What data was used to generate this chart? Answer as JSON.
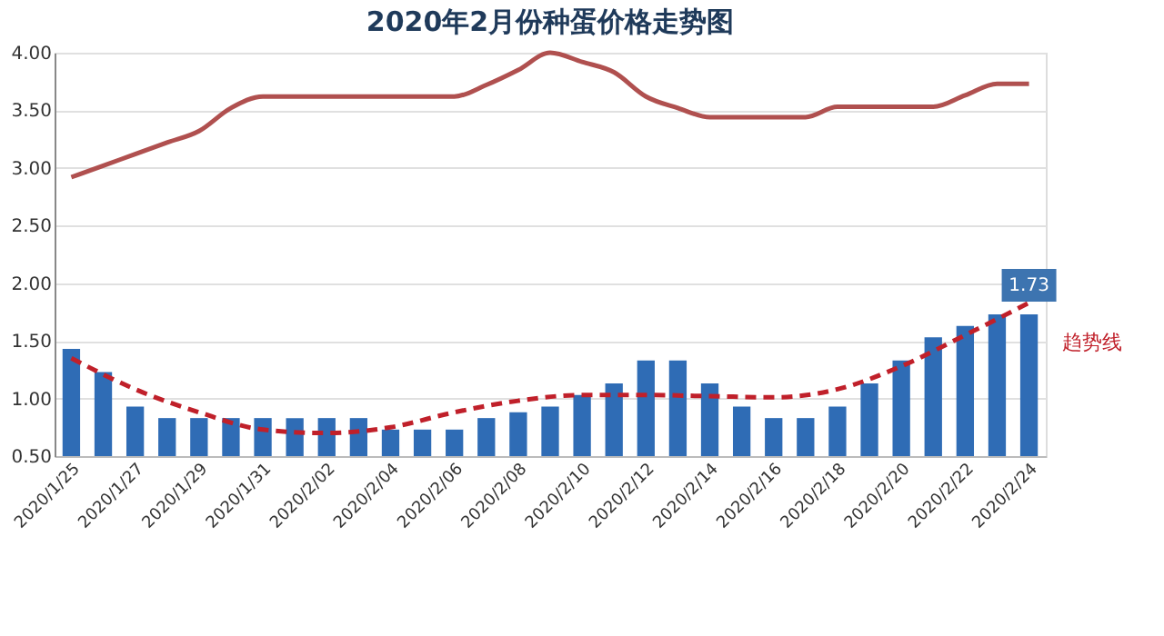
{
  "chart_data": {
    "type": "bar",
    "title": "2020年2月份种蛋价格走势图",
    "categories": [
      "2020/1/25",
      null,
      "2020/1/27",
      null,
      "2020/1/29",
      null,
      "2020/1/31",
      null,
      "2020/2/02",
      null,
      "2020/2/04",
      null,
      "2020/2/06",
      null,
      "2020/2/08",
      null,
      "2020/2/10",
      null,
      "2020/2/12",
      null,
      "2020/2/14",
      null,
      "2020/2/16",
      null,
      "2020/2/18",
      null,
      "2020/2/20",
      null,
      "2020/2/22",
      null,
      "2020/2/24"
    ],
    "series": [
      {
        "color": "#2f6cb5",
        "values": [
          1.43,
          1.23,
          0.93,
          0.83,
          0.83,
          0.83,
          0.83,
          0.83,
          0.83,
          0.83,
          0.73,
          0.73,
          0.73,
          0.83,
          0.88,
          0.93,
          1.03,
          1.13,
          1.33,
          1.33,
          1.13,
          0.93,
          0.83,
          0.83,
          0.93,
          1.13,
          1.33,
          1.53,
          1.63,
          1.73,
          1.73
        ],
        "value_labels": [
          null,
          null,
          null,
          null,
          null,
          null,
          null,
          null,
          null,
          null,
          null,
          null,
          null,
          null,
          null,
          null,
          null,
          null,
          null,
          null,
          null,
          null,
          null,
          null,
          null,
          null,
          null,
          null,
          null,
          null,
          "1.73"
        ]
      },
      {
        "type": "line",
        "color": "#b0504f",
        "line_style": "solid",
        "values": [
          2.92,
          3.02,
          3.12,
          3.22,
          3.32,
          3.52,
          3.62,
          3.62,
          3.62,
          3.62,
          3.62,
          3.62,
          3.62,
          3.72,
          3.85,
          4.0,
          3.92,
          3.83,
          3.62,
          3.52,
          3.44,
          3.44,
          3.44,
          3.44,
          3.53,
          3.53,
          3.53,
          3.53,
          3.63,
          3.73,
          3.73
        ]
      },
      {
        "type": "line",
        "name": "趋势线",
        "color": "#c0202a",
        "line_style": "dashed",
        "x": [
          "2020/1/25",
          "2020/1/27",
          "2020/1/29",
          "2020/1/31",
          "2020/2/02",
          "2020/2/04",
          "2020/2/06",
          "2020/2/08",
          "2020/2/10",
          "2020/2/12",
          "2020/2/14",
          "2020/2/16",
          "2020/2/18",
          "2020/2/20",
          "2020/2/22",
          "2020/2/24"
        ],
        "values": [
          1.35,
          1.08,
          0.88,
          0.73,
          0.7,
          0.75,
          0.88,
          0.98,
          1.03,
          1.03,
          1.02,
          1.01,
          1.08,
          1.28,
          1.55,
          1.83
        ]
      }
    ],
    "ylim": [
      0.5,
      4.0
    ],
    "yticks": [
      {
        "value": 0.5,
        "label": "0.50"
      },
      {
        "value": 1.0,
        "label": "1.00"
      },
      {
        "value": 1.5,
        "label": "1.50"
      },
      {
        "value": 2.0,
        "label": "2.00"
      },
      {
        "value": 2.5,
        "label": "2.50"
      },
      {
        "value": 3.0,
        "label": "3.00"
      },
      {
        "value": 3.5,
        "label": "3.50"
      },
      {
        "value": 4.0,
        "label": "4.00"
      }
    ],
    "grid": "y"
  }
}
